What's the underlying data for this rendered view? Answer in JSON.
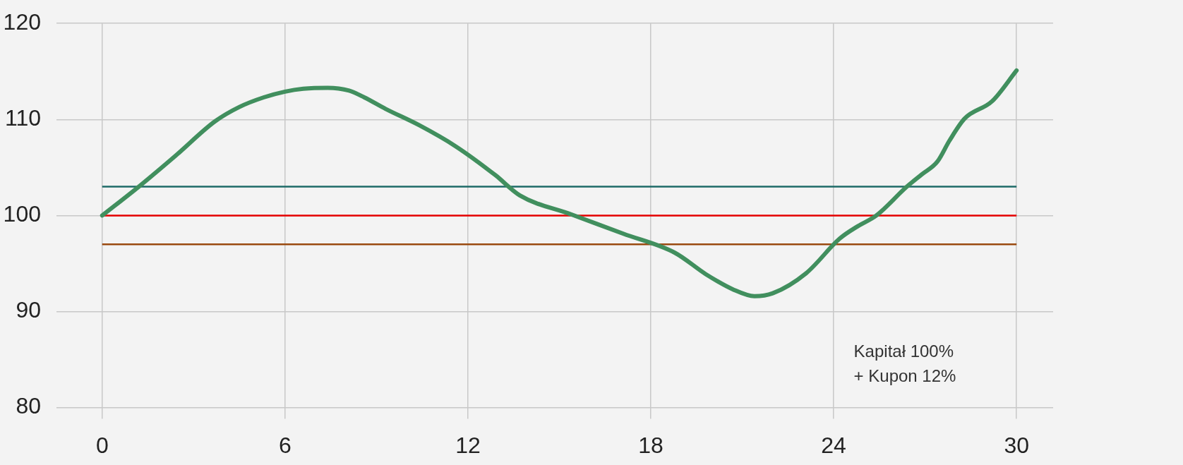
{
  "chart_data": {
    "type": "line",
    "x": [
      0,
      1.2,
      2.4,
      3.7,
      4.5,
      5.3,
      6,
      6.6,
      7.4,
      8.1,
      8.6,
      9.3,
      10.4,
      11.6,
      12.9,
      13.7,
      15.4,
      17.1,
      18.8,
      19.8,
      20.7,
      21.4,
      22,
      23.1,
      24.2,
      24.8,
      25.4,
      26.4,
      26.9,
      27.4,
      27.8,
      28.3,
      29.2,
      30
    ],
    "series": [
      {
        "color": "#418f5e",
        "values": [
          100,
          103,
          106.2,
          109.8,
          111.3,
          112.3,
          112.9,
          113.2,
          113.3,
          113,
          112.3,
          111.1,
          109.4,
          107.2,
          104.2,
          102.1,
          100.1,
          98.1,
          96.1,
          93.9,
          92.3,
          91.6,
          91.9,
          94,
          97.6,
          98.9,
          100,
          103,
          104.3,
          105.6,
          107.8,
          110.1,
          111.9,
          115.1
        ]
      }
    ],
    "xlim": [
      -1.5,
      31.2
    ],
    "ylim": [
      80,
      120
    ],
    "xticks": [
      0,
      6,
      12,
      18,
      24,
      30
    ],
    "yticks": [
      80,
      90,
      100,
      110,
      120
    ],
    "grid": true,
    "marker": "none",
    "ref_lines": [
      {
        "axis": "y",
        "value": 103,
        "color": "#1d6a67"
      },
      {
        "axis": "y",
        "value": 100,
        "color": "#e60000"
      },
      {
        "axis": "y",
        "value": 97,
        "color": "#9a4a10"
      }
    ],
    "annotations": [
      "Kapitał 100%\n+ Kupon 12%"
    ]
  }
}
